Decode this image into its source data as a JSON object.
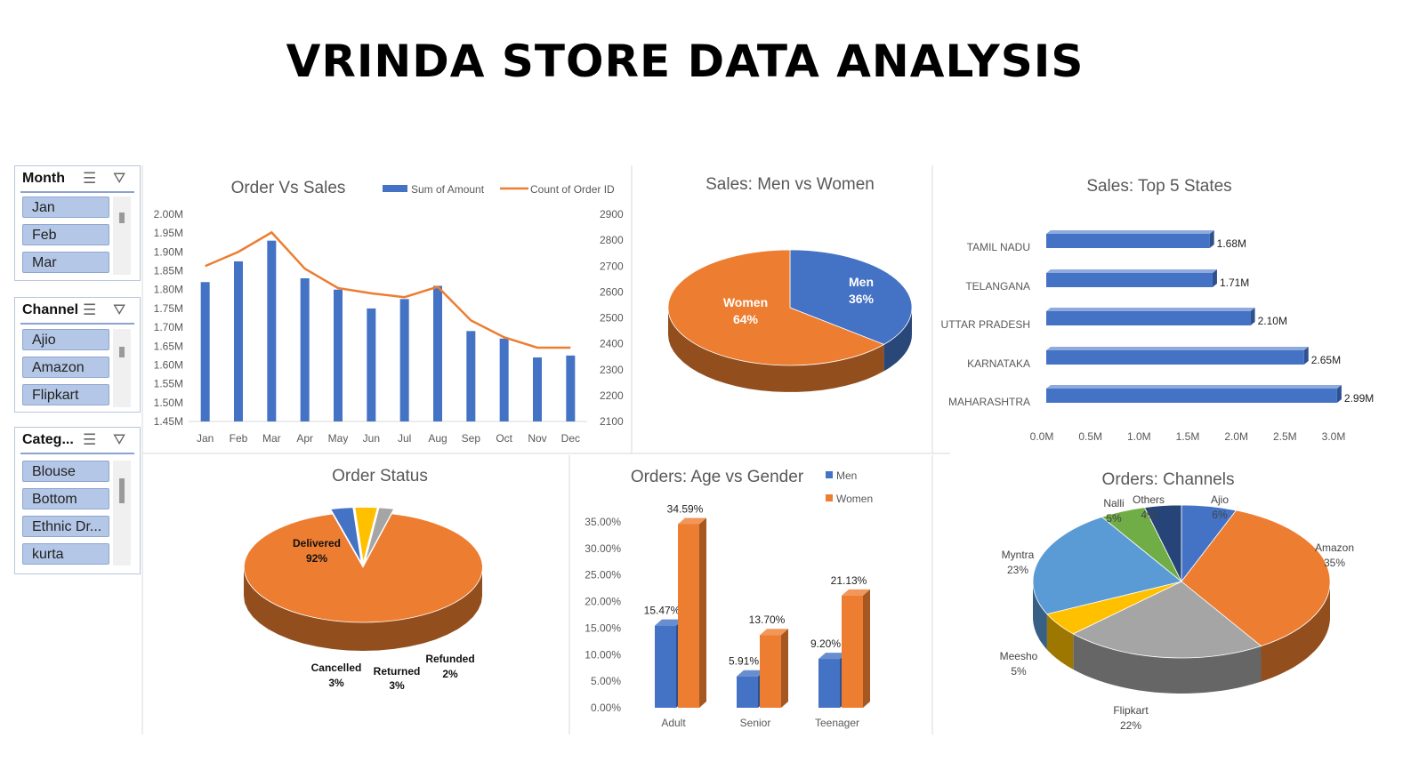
{
  "title": "VRINDA STORE DATA ANALYSIS",
  "slicers": [
    {
      "title": "Month",
      "items": [
        "Jan",
        "Feb",
        "Mar"
      ]
    },
    {
      "title": "Channel",
      "items": [
        "Ajio",
        "Amazon",
        "Flipkart"
      ]
    },
    {
      "title": "Categ...",
      "items": [
        "Blouse",
        "Bottom",
        "Ethnic Dr...",
        "kurta"
      ]
    }
  ],
  "colors": {
    "blue": "#4472c4",
    "orange": "#ed7d31",
    "gray": "#a5a5a5",
    "yellow": "#ffc000",
    "light_blue": "#5b9bd5",
    "green": "#70ad47",
    "navy": "#264478",
    "dark_gray": "#4a4a4a"
  },
  "chart_data": [
    {
      "type": "bar",
      "title": "Order Vs Sales",
      "categories": [
        "Jan",
        "Feb",
        "Mar",
        "Apr",
        "May",
        "Jun",
        "Jul",
        "Aug",
        "Sep",
        "Oct",
        "Nov",
        "Dec"
      ],
      "series": [
        {
          "name": "Sum of Amount",
          "type": "bar",
          "axis": "left",
          "values": [
            1.82,
            1.875,
            1.93,
            1.83,
            1.8,
            1.75,
            1.775,
            1.81,
            1.69,
            1.67,
            1.62,
            1.625
          ]
        },
        {
          "name": "Count of Order ID",
          "type": "line",
          "axis": "right",
          "values": [
            2700,
            2755,
            2830,
            2690,
            2615,
            2595,
            2580,
            2620,
            2490,
            2425,
            2385,
            2385
          ]
        }
      ],
      "ylim": [
        1.45,
        2.0
      ],
      "yticks": [
        "2.00M",
        "1.95M",
        "1.90M",
        "1.85M",
        "1.80M",
        "1.75M",
        "1.70M",
        "1.65M",
        "1.60M",
        "1.55M",
        "1.50M",
        "1.45M"
      ],
      "y2lim": [
        2100,
        2900
      ],
      "y2ticks": [
        "2900",
        "2800",
        "2700",
        "2600",
        "2500",
        "2400",
        "2300",
        "2200",
        "2100"
      ],
      "legend_position": "top-right"
    },
    {
      "type": "pie",
      "title": "Sales: Men vs Women",
      "labels": [
        "Men",
        "Women"
      ],
      "values": [
        36,
        64
      ],
      "value_labels": [
        "36%",
        "64%"
      ],
      "colors": [
        "#4472c4",
        "#ed7d31"
      ]
    },
    {
      "type": "bar",
      "orientation": "horizontal",
      "title": "Sales: Top 5 States",
      "categories": [
        "TAMIL NADU",
        "TELANGANA",
        "UTTAR PRADESH",
        "KARNATAKA",
        "MAHARASHTRA"
      ],
      "values": [
        1.68,
        1.71,
        2.1,
        2.65,
        2.99
      ],
      "value_labels": [
        "1.68M",
        "1.71M",
        "2.10M",
        "2.65M",
        "2.99M"
      ],
      "xlim": [
        0,
        3.0
      ],
      "xticks": [
        "0.0M",
        "0.5M",
        "1.0M",
        "1.5M",
        "2.0M",
        "2.5M",
        "3.0M"
      ]
    },
    {
      "type": "pie",
      "title": "Order Status",
      "labels": [
        "Delivered",
        "Cancelled",
        "Returned",
        "Refunded"
      ],
      "values": [
        92,
        3,
        3,
        2
      ],
      "value_labels": [
        "92%",
        "3%",
        "3%",
        "2%"
      ],
      "colors": [
        "#ed7d31",
        "#4472c4",
        "#ffc000",
        "#a5a5a5"
      ]
    },
    {
      "type": "bar",
      "title": "Orders: Age vs Gender",
      "categories": [
        "Adult",
        "Senior",
        "Teenager"
      ],
      "series": [
        {
          "name": "Men",
          "values": [
            15.47,
            5.91,
            9.2
          ],
          "value_labels": [
            "15.47%",
            "5.91%",
            "9.20%"
          ]
        },
        {
          "name": "Women",
          "values": [
            34.59,
            13.7,
            21.13
          ],
          "value_labels": [
            "34.59%",
            "13.70%",
            "21.13%"
          ]
        }
      ],
      "ylim": [
        0,
        35
      ],
      "yticks": [
        "35.00%",
        "30.00%",
        "25.00%",
        "20.00%",
        "15.00%",
        "10.00%",
        "5.00%",
        "0.00%"
      ],
      "legend_position": "top-right"
    },
    {
      "type": "pie",
      "title": "Orders: Channels",
      "labels": [
        "Ajio",
        "Amazon",
        "Flipkart",
        "Meesho",
        "Myntra",
        "Nalli",
        "Others"
      ],
      "values": [
        6,
        35,
        22,
        5,
        23,
        5,
        4
      ],
      "value_labels": [
        "6%",
        "35%",
        "22%",
        "5%",
        "23%",
        "5%",
        "4%"
      ],
      "colors": [
        "#4472c4",
        "#ed7d31",
        "#a5a5a5",
        "#ffc000",
        "#5b9bd5",
        "#70ad47",
        "#264478"
      ]
    }
  ]
}
